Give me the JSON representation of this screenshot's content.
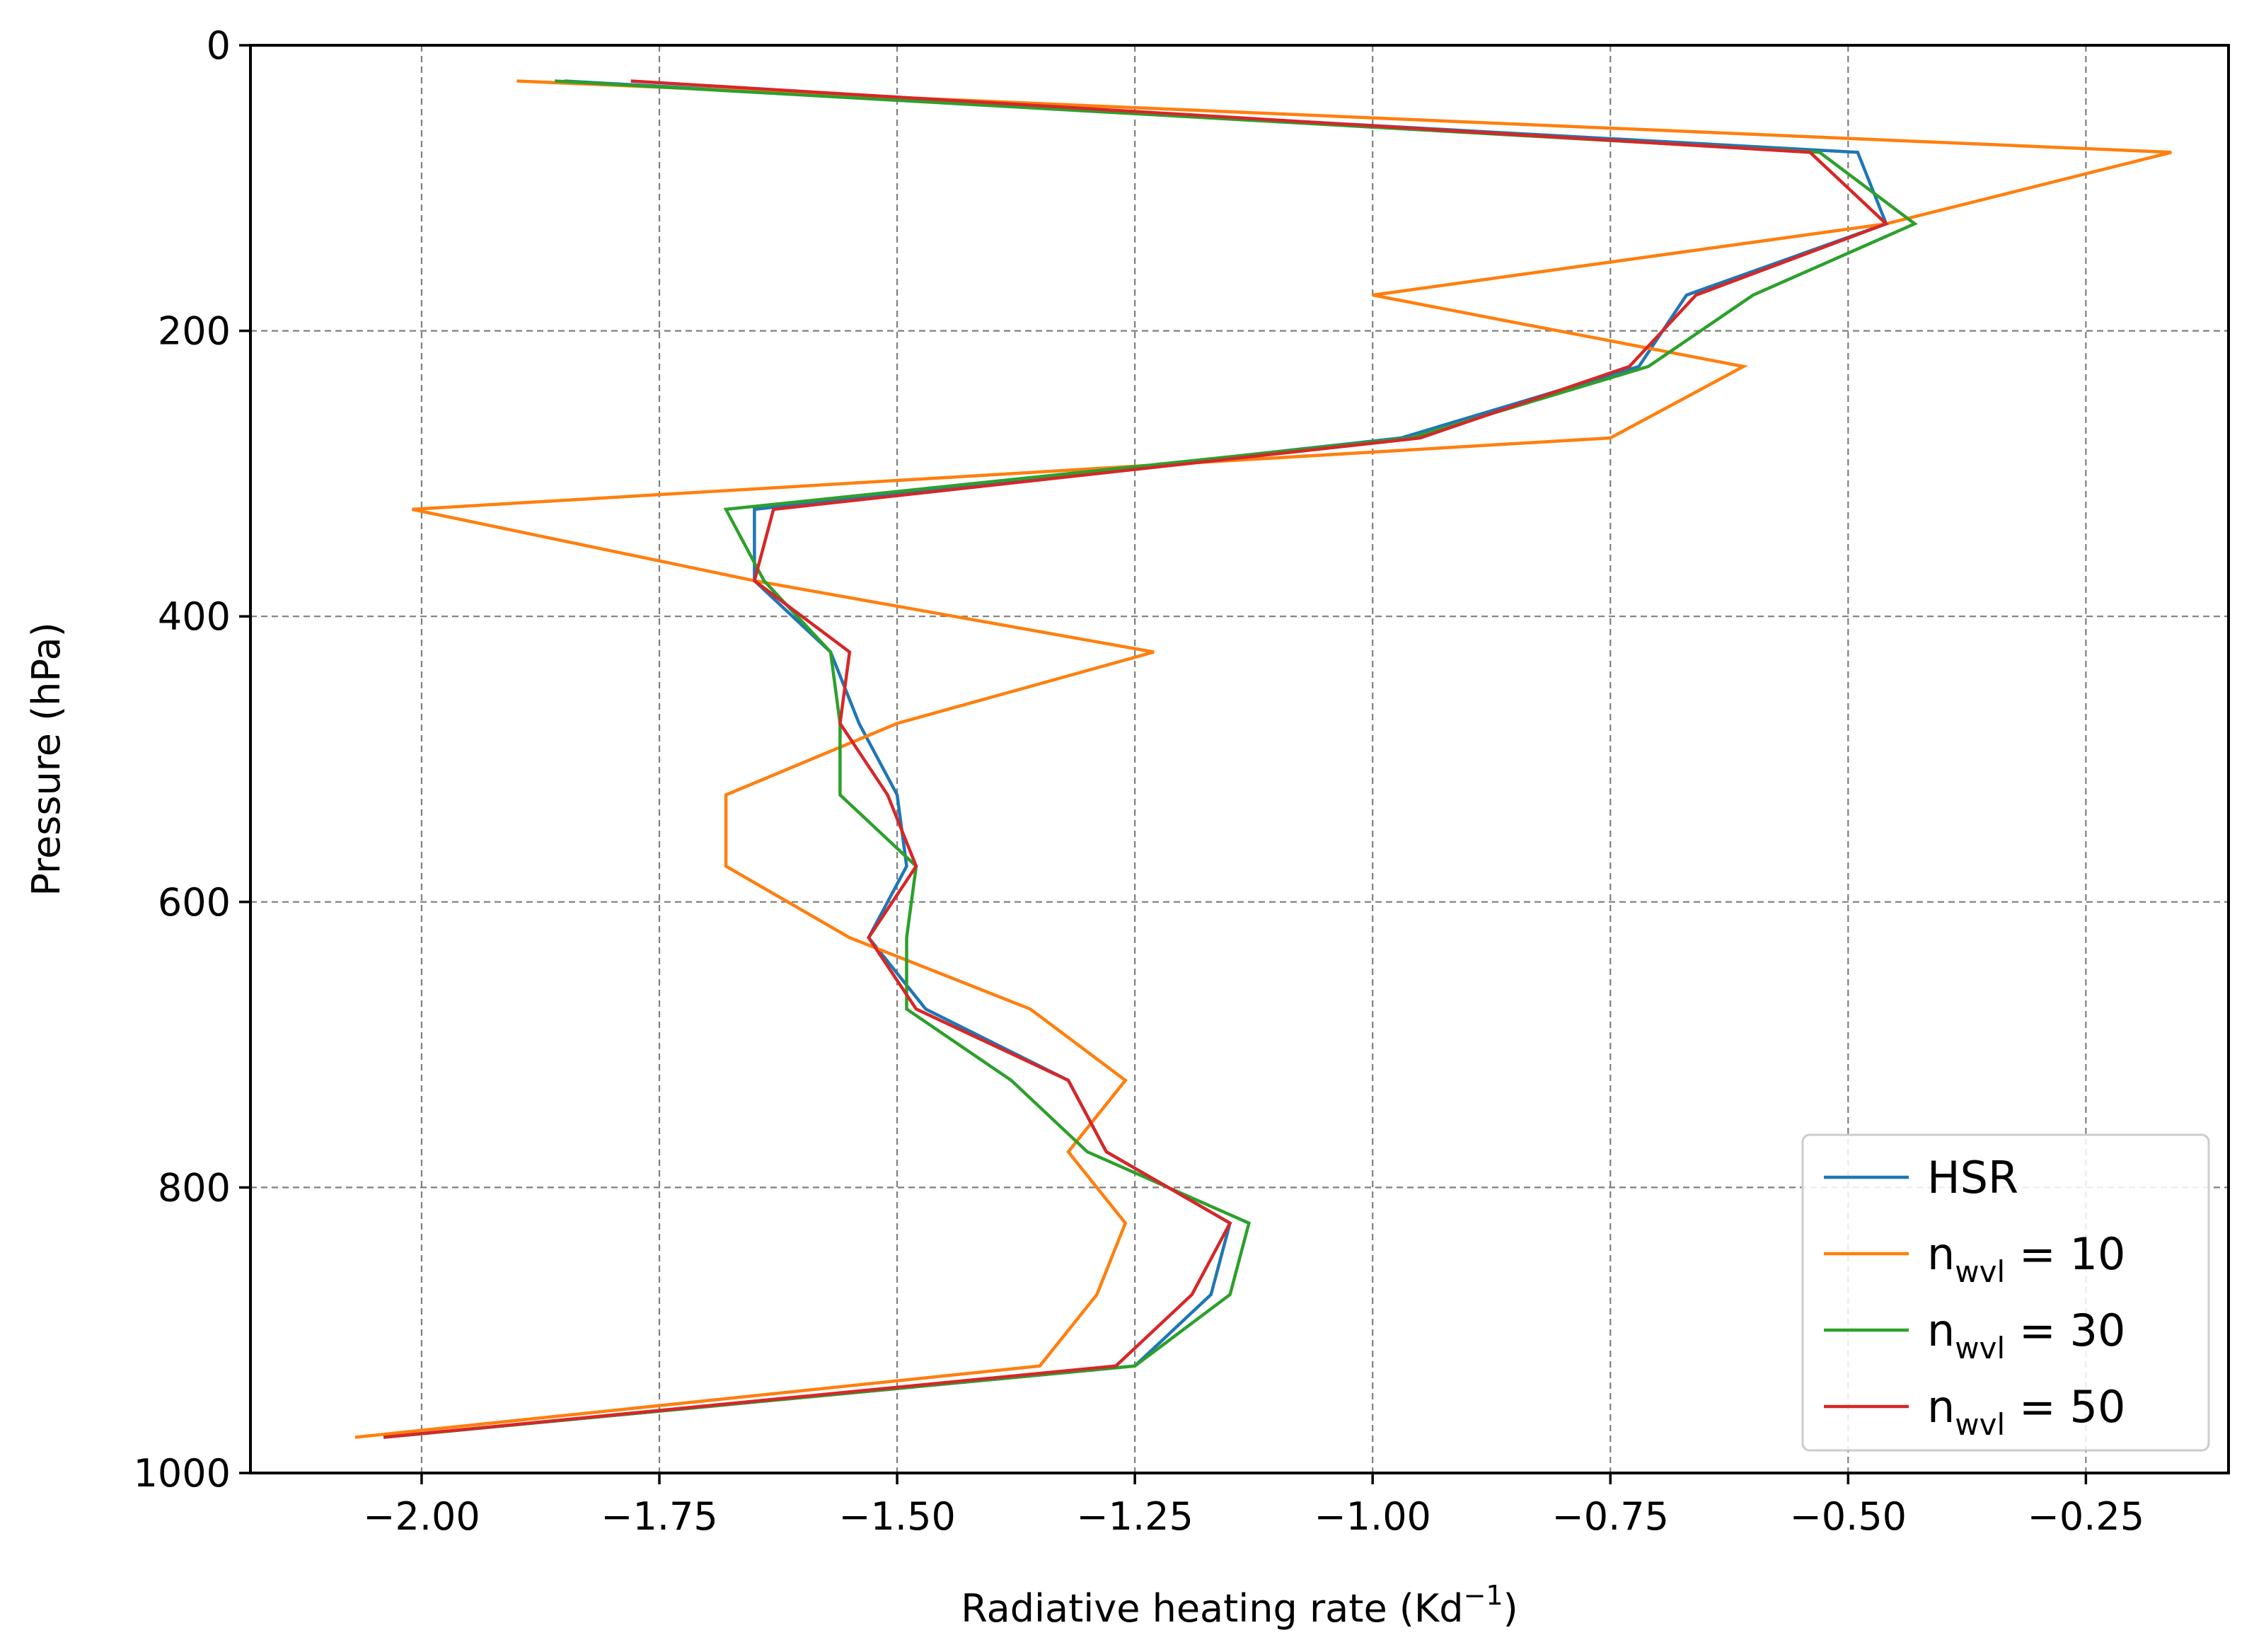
{
  "chart_data": {
    "type": "line",
    "xlabel": "Radiative heating rate (Kd",
    "xlabel_sup": "−1",
    "xlabel_end": ")",
    "ylabel": "Pressure (hPa)",
    "xlim": [
      -2.18,
      -0.1
    ],
    "ylim": [
      1000,
      0
    ],
    "y_inverted": true,
    "grid": true,
    "legend_position": "lower right",
    "x_ticks": [
      -2.0,
      -1.75,
      -1.5,
      -1.25,
      -1.0,
      -0.75,
      -0.5,
      -0.25
    ],
    "x_tick_labels": [
      "−2.00",
      "−1.75",
      "−1.50",
      "−1.25",
      "−1.00",
      "−0.75",
      "−0.50",
      "−0.25"
    ],
    "y_ticks": [
      0,
      200,
      400,
      600,
      800,
      1000
    ],
    "y_tick_labels": [
      "0",
      "200",
      "400",
      "600",
      "800",
      "1000"
    ],
    "y": [
      25,
      75,
      125,
      175,
      225,
      275,
      325,
      375,
      425,
      475,
      525,
      575,
      625,
      675,
      725,
      775,
      825,
      875,
      925,
      975
    ],
    "series": [
      {
        "name": "HSR",
        "color": "#1f77b4",
        "x": [
          -1.85,
          -0.49,
          -0.46,
          -0.67,
          -0.72,
          -0.97,
          -1.65,
          -1.65,
          -1.57,
          -1.54,
          -1.5,
          -1.49,
          -1.53,
          -1.47,
          -1.32,
          -1.28,
          -1.15,
          -1.17,
          -1.25,
          -2.04
        ]
      },
      {
        "name": "n_wvl = 10",
        "label_main": "n",
        "label_sub": "wvl",
        "label_end": " = 10",
        "color": "#ff7f0e",
        "x": [
          -1.9,
          -0.16,
          -0.46,
          -1.0,
          -0.61,
          -0.75,
          -2.01,
          -1.65,
          -1.23,
          -1.5,
          -1.68,
          -1.68,
          -1.55,
          -1.36,
          -1.26,
          -1.32,
          -1.26,
          -1.29,
          -1.35,
          -2.07
        ]
      },
      {
        "name": "n_wvl = 30",
        "label_main": "n",
        "label_sub": "wvl",
        "label_end": " = 30",
        "color": "#2ca02c",
        "x": [
          -1.86,
          -0.53,
          -0.43,
          -0.6,
          -0.71,
          -0.96,
          -1.68,
          -1.64,
          -1.57,
          -1.56,
          -1.56,
          -1.48,
          -1.49,
          -1.49,
          -1.38,
          -1.3,
          -1.13,
          -1.15,
          -1.25,
          -2.04
        ]
      },
      {
        "name": "n_wvl = 50",
        "label_main": "n",
        "label_sub": "wvl",
        "label_end": " = 50",
        "color": "#d62728",
        "x": [
          -1.78,
          -0.54,
          -0.46,
          -0.66,
          -0.73,
          -0.95,
          -1.63,
          -1.65,
          -1.55,
          -1.56,
          -1.51,
          -1.48,
          -1.53,
          -1.48,
          -1.32,
          -1.28,
          -1.15,
          -1.19,
          -1.27,
          -2.04
        ]
      }
    ]
  }
}
